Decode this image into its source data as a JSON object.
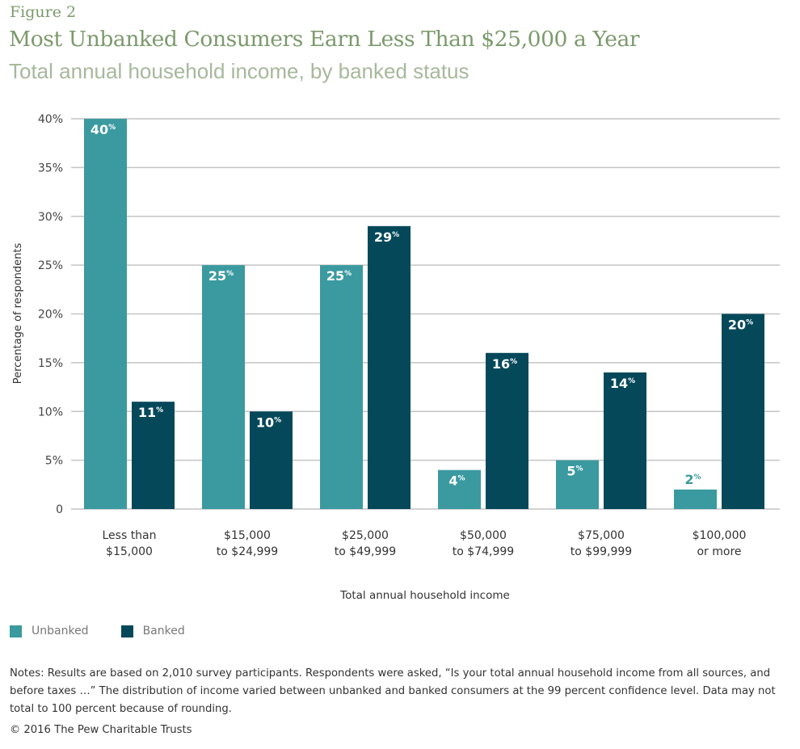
{
  "figure_label": "Figure 2",
  "chart_data": {
    "type": "bar",
    "title": "Most Unbanked Consumers Earn Less Than $25,000 a Year",
    "subtitle": "Total annual household income, by banked status",
    "xlabel": "Total annual household income",
    "ylabel": "Percentage of respondents",
    "ylim": [
      0,
      40
    ],
    "yticks": [
      "0",
      "5%",
      "10%",
      "15%",
      "20%",
      "25%",
      "30%",
      "35%",
      "40%"
    ],
    "grid": true,
    "legend_placement": "bottom-left",
    "categories": [
      [
        "Less than",
        "$15,000"
      ],
      [
        "$15,000",
        "to $24,999"
      ],
      [
        "$25,000",
        "to $49,999"
      ],
      [
        "$50,000",
        "to $74,999"
      ],
      [
        "$75,000",
        "to  $99,999"
      ],
      [
        "$100,000",
        "or more"
      ]
    ],
    "series": [
      {
        "name": "Unbanked",
        "color": "#3a9a9f",
        "values": [
          40,
          25,
          25,
          4,
          5,
          2
        ]
      },
      {
        "name": "Banked",
        "color": "#04485a",
        "values": [
          11,
          10,
          29,
          16,
          14,
          20
        ]
      }
    ],
    "value_suffix": "%"
  },
  "notes": "Notes: Results are based on 2,010 survey participants. Respondents were asked, “Is your total annual household income from all sources, and before taxes …” The distribution of income varied between unbanked and banked consumers at the 99 percent confidence level. Data may not total to 100 percent because of rounding.",
  "copyright": "© 2016 The Pew Charitable Trusts"
}
